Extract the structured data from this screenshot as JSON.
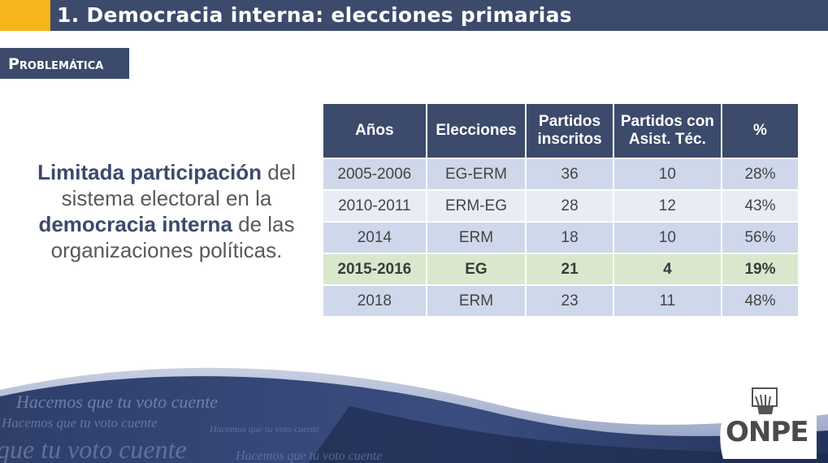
{
  "slide": {
    "title": "1. Democracia interna: elecciones primarias",
    "section_label": "Problemática"
  },
  "statement": {
    "part1_bold": "Limitada participación",
    "part2": " del sistema electoral en la ",
    "part3_bold": "democracia interna",
    "part4": " de las organizaciones políticas."
  },
  "table": {
    "headers": [
      "Años",
      "Elecciones",
      "Partidos inscritos",
      "Partidos con Asist. Téc.",
      "%"
    ],
    "header_lines": [
      [
        "Años"
      ],
      [
        "Elecciones"
      ],
      [
        "Partidos",
        "inscritos"
      ],
      [
        "Partidos con",
        "Asist. Téc."
      ],
      [
        "%"
      ]
    ],
    "rows": [
      [
        "2005-2006",
        "EG-ERM",
        "36",
        "10",
        "28%"
      ],
      [
        "2010-2011",
        "ERM-EG",
        "28",
        "12",
        "43%"
      ],
      [
        "2014",
        "ERM",
        "18",
        "10",
        "56%"
      ],
      [
        "2015-2016",
        "EG",
        "21",
        "4",
        "19%"
      ],
      [
        "2018",
        "ERM",
        "23",
        "11",
        "48%"
      ]
    ],
    "highlighted_row": 3
  },
  "footer": {
    "slogan_lines": [
      "Hacemos que tu voto cuente",
      "Hacemos que tu voto cuente",
      "que tu voto cuente",
      "Hacemos que tu voto cuente",
      "Hacemos que tu voto cuente"
    ],
    "logo_text": "ONPE"
  },
  "colors": {
    "navy": "#3c4a6b",
    "accent": "#f5b51b",
    "row_odd": "#cfd8ea",
    "row_even": "#e8ecf4",
    "row_highlight": "#d9e8cc"
  }
}
